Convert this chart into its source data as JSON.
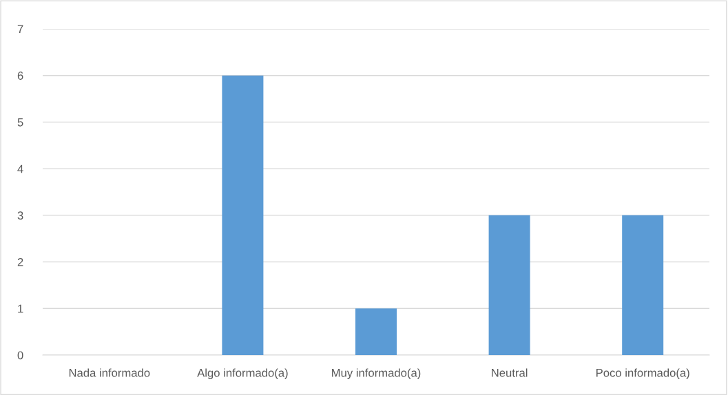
{
  "chart_data": {
    "type": "bar",
    "categories": [
      "Nada informado",
      "Algo informado(a)",
      "Muy informado(a)",
      "Neutral",
      "Poco informado(a)"
    ],
    "values": [
      0,
      6,
      1,
      3,
      3
    ],
    "color": "#5b9bd5",
    "ylim": [
      0,
      7
    ],
    "yticks": [
      0,
      1,
      2,
      3,
      4,
      5,
      6,
      7
    ],
    "grid": "y",
    "legend": false
  }
}
